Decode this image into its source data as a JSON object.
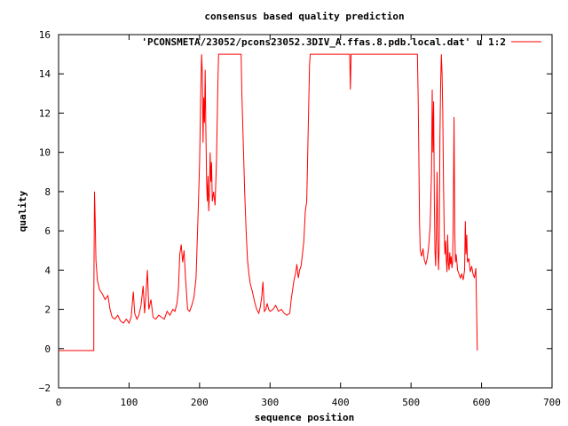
{
  "chart_data": {
    "type": "line",
    "title": "consensus based quality prediction",
    "xlabel": "sequence position",
    "ylabel": "quality",
    "xlim": [
      0,
      700
    ],
    "ylim": [
      -2,
      16
    ],
    "xticks": [
      "0",
      "100",
      "200",
      "300",
      "400",
      "500",
      "600",
      "700"
    ],
    "yticks": [
      "−2",
      "0",
      "2",
      "4",
      "6",
      "8",
      "10",
      "12",
      "14",
      "16"
    ],
    "grid": false,
    "legend_position": "top-right",
    "series": [
      {
        "name": "'PCONSMETA/23052/pcons23052.3DIV_A.ffas.8.pdb.local.dat' u 1:2",
        "color": "#ff0000",
        "points": [
          [
            0,
            -0.1
          ],
          [
            50,
            -0.1
          ],
          [
            50,
            2.5
          ],
          [
            51,
            8.0
          ],
          [
            52,
            6.5
          ],
          [
            53,
            4.5
          ],
          [
            55,
            3.5
          ],
          [
            58,
            3.0
          ],
          [
            62,
            2.8
          ],
          [
            66,
            2.5
          ],
          [
            70,
            2.7
          ],
          [
            73,
            2.0
          ],
          [
            76,
            1.6
          ],
          [
            80,
            1.5
          ],
          [
            84,
            1.7
          ],
          [
            88,
            1.4
          ],
          [
            92,
            1.3
          ],
          [
            96,
            1.5
          ],
          [
            100,
            1.3
          ],
          [
            103,
            1.6
          ],
          [
            106,
            2.9
          ],
          [
            108,
            1.8
          ],
          [
            111,
            1.5
          ],
          [
            114,
            1.7
          ],
          [
            117,
            2.2
          ],
          [
            120,
            3.2
          ],
          [
            122,
            1.8
          ],
          [
            124,
            2.8
          ],
          [
            126,
            4.0
          ],
          [
            128,
            2.0
          ],
          [
            131,
            2.5
          ],
          [
            134,
            1.6
          ],
          [
            138,
            1.5
          ],
          [
            142,
            1.7
          ],
          [
            146,
            1.6
          ],
          [
            150,
            1.5
          ],
          [
            154,
            1.9
          ],
          [
            158,
            1.7
          ],
          [
            162,
            2.0
          ],
          [
            165,
            1.9
          ],
          [
            168,
            2.3
          ],
          [
            170,
            3.0
          ],
          [
            172,
            4.8
          ],
          [
            174,
            5.3
          ],
          [
            176,
            4.4
          ],
          [
            178,
            5.0
          ],
          [
            180,
            3.6
          ],
          [
            183,
            2.0
          ],
          [
            186,
            1.9
          ],
          [
            189,
            2.2
          ],
          [
            192,
            2.6
          ],
          [
            195,
            3.6
          ],
          [
            198,
            7.0
          ],
          [
            200,
            9.5
          ],
          [
            202,
            13.5
          ],
          [
            203,
            15.0
          ],
          [
            204,
            14.0
          ],
          [
            205,
            10.5
          ],
          [
            206,
            12.8
          ],
          [
            207,
            11.5
          ],
          [
            208,
            14.2
          ],
          [
            209,
            11.0
          ],
          [
            210,
            8.5
          ],
          [
            211,
            7.5
          ],
          [
            212,
            8.8
          ],
          [
            213,
            7.0
          ],
          [
            214,
            8.0
          ],
          [
            215,
            10.0
          ],
          [
            216,
            8.5
          ],
          [
            217,
            9.5
          ],
          [
            218,
            7.5
          ],
          [
            220,
            8.0
          ],
          [
            222,
            7.3
          ],
          [
            224,
            9.5
          ],
          [
            226,
            13.5
          ],
          [
            227,
            15.0
          ],
          [
            230,
            15.0
          ],
          [
            240,
            15.0
          ],
          [
            250,
            15.0
          ],
          [
            259,
            15.0
          ],
          [
            260,
            13.0
          ],
          [
            262,
            10.5
          ],
          [
            264,
            8.0
          ],
          [
            266,
            6.0
          ],
          [
            268,
            4.5
          ],
          [
            270,
            3.8
          ],
          [
            272,
            3.3
          ],
          [
            275,
            2.9
          ],
          [
            278,
            2.4
          ],
          [
            281,
            2.0
          ],
          [
            284,
            1.8
          ],
          [
            286,
            2.1
          ],
          [
            288,
            2.6
          ],
          [
            290,
            3.4
          ],
          [
            292,
            1.9
          ],
          [
            294,
            2.0
          ],
          [
            296,
            2.3
          ],
          [
            298,
            2.0
          ],
          [
            300,
            1.9
          ],
          [
            304,
            2.0
          ],
          [
            308,
            2.2
          ],
          [
            312,
            1.9
          ],
          [
            316,
            2.0
          ],
          [
            320,
            1.8
          ],
          [
            324,
            1.7
          ],
          [
            328,
            1.8
          ],
          [
            330,
            2.5
          ],
          [
            332,
            3.0
          ],
          [
            334,
            3.5
          ],
          [
            336,
            3.8
          ],
          [
            338,
            4.3
          ],
          [
            340,
            3.6
          ],
          [
            342,
            4.0
          ],
          [
            344,
            4.2
          ],
          [
            346,
            4.8
          ],
          [
            348,
            5.5
          ],
          [
            350,
            7.0
          ],
          [
            352,
            7.5
          ],
          [
            354,
            11.0
          ],
          [
            356,
            14.5
          ],
          [
            357,
            15.0
          ],
          [
            370,
            15.0
          ],
          [
            380,
            15.0
          ],
          [
            390,
            15.0
          ],
          [
            400,
            15.0
          ],
          [
            410,
            15.0
          ],
          [
            413,
            15.0
          ],
          [
            414,
            13.2
          ],
          [
            415,
            15.0
          ],
          [
            430,
            15.0
          ],
          [
            450,
            15.0
          ],
          [
            470,
            15.0
          ],
          [
            490,
            15.0
          ],
          [
            509,
            15.0
          ],
          [
            510,
            13.0
          ],
          [
            511,
            10.0
          ],
          [
            512,
            6.5
          ],
          [
            513,
            5.0
          ],
          [
            515,
            4.7
          ],
          [
            517,
            5.1
          ],
          [
            519,
            4.5
          ],
          [
            521,
            4.3
          ],
          [
            523,
            4.6
          ],
          [
            525,
            5.2
          ],
          [
            527,
            6.2
          ],
          [
            528,
            7.5
          ],
          [
            529,
            9.0
          ],
          [
            530,
            13.2
          ],
          [
            531,
            10.0
          ],
          [
            532,
            12.6
          ],
          [
            533,
            7.5
          ],
          [
            534,
            5.0
          ],
          [
            535,
            4.2
          ],
          [
            536,
            6.0
          ],
          [
            537,
            9.0
          ],
          [
            538,
            5.5
          ],
          [
            539,
            4.0
          ],
          [
            540,
            5.2
          ],
          [
            541,
            10.8
          ],
          [
            542,
            13.5
          ],
          [
            543,
            15.0
          ],
          [
            544,
            14.0
          ],
          [
            545,
            12.0
          ],
          [
            546,
            8.5
          ],
          [
            547,
            6.0
          ],
          [
            548,
            4.8
          ],
          [
            549,
            5.5
          ],
          [
            550,
            4.5
          ],
          [
            551,
            3.9
          ],
          [
            552,
            5.8
          ],
          [
            553,
            4.4
          ],
          [
            554,
            4.0
          ],
          [
            555,
            4.9
          ],
          [
            556,
            4.3
          ],
          [
            557,
            4.7
          ],
          [
            558,
            4.1
          ],
          [
            559,
            4.4
          ],
          [
            560,
            7.0
          ],
          [
            561,
            11.8
          ],
          [
            562,
            6.0
          ],
          [
            563,
            4.4
          ],
          [
            564,
            4.8
          ],
          [
            566,
            4.0
          ],
          [
            568,
            3.8
          ],
          [
            570,
            3.6
          ],
          [
            572,
            3.8
          ],
          [
            574,
            3.5
          ],
          [
            576,
            4.0
          ],
          [
            577,
            6.5
          ],
          [
            578,
            4.8
          ],
          [
            579,
            5.8
          ],
          [
            580,
            4.4
          ],
          [
            582,
            4.6
          ],
          [
            584,
            3.9
          ],
          [
            586,
            4.2
          ],
          [
            588,
            3.8
          ],
          [
            590,
            3.6
          ],
          [
            592,
            4.1
          ],
          [
            593,
            2.0
          ],
          [
            594,
            -0.1
          ]
        ]
      }
    ]
  }
}
